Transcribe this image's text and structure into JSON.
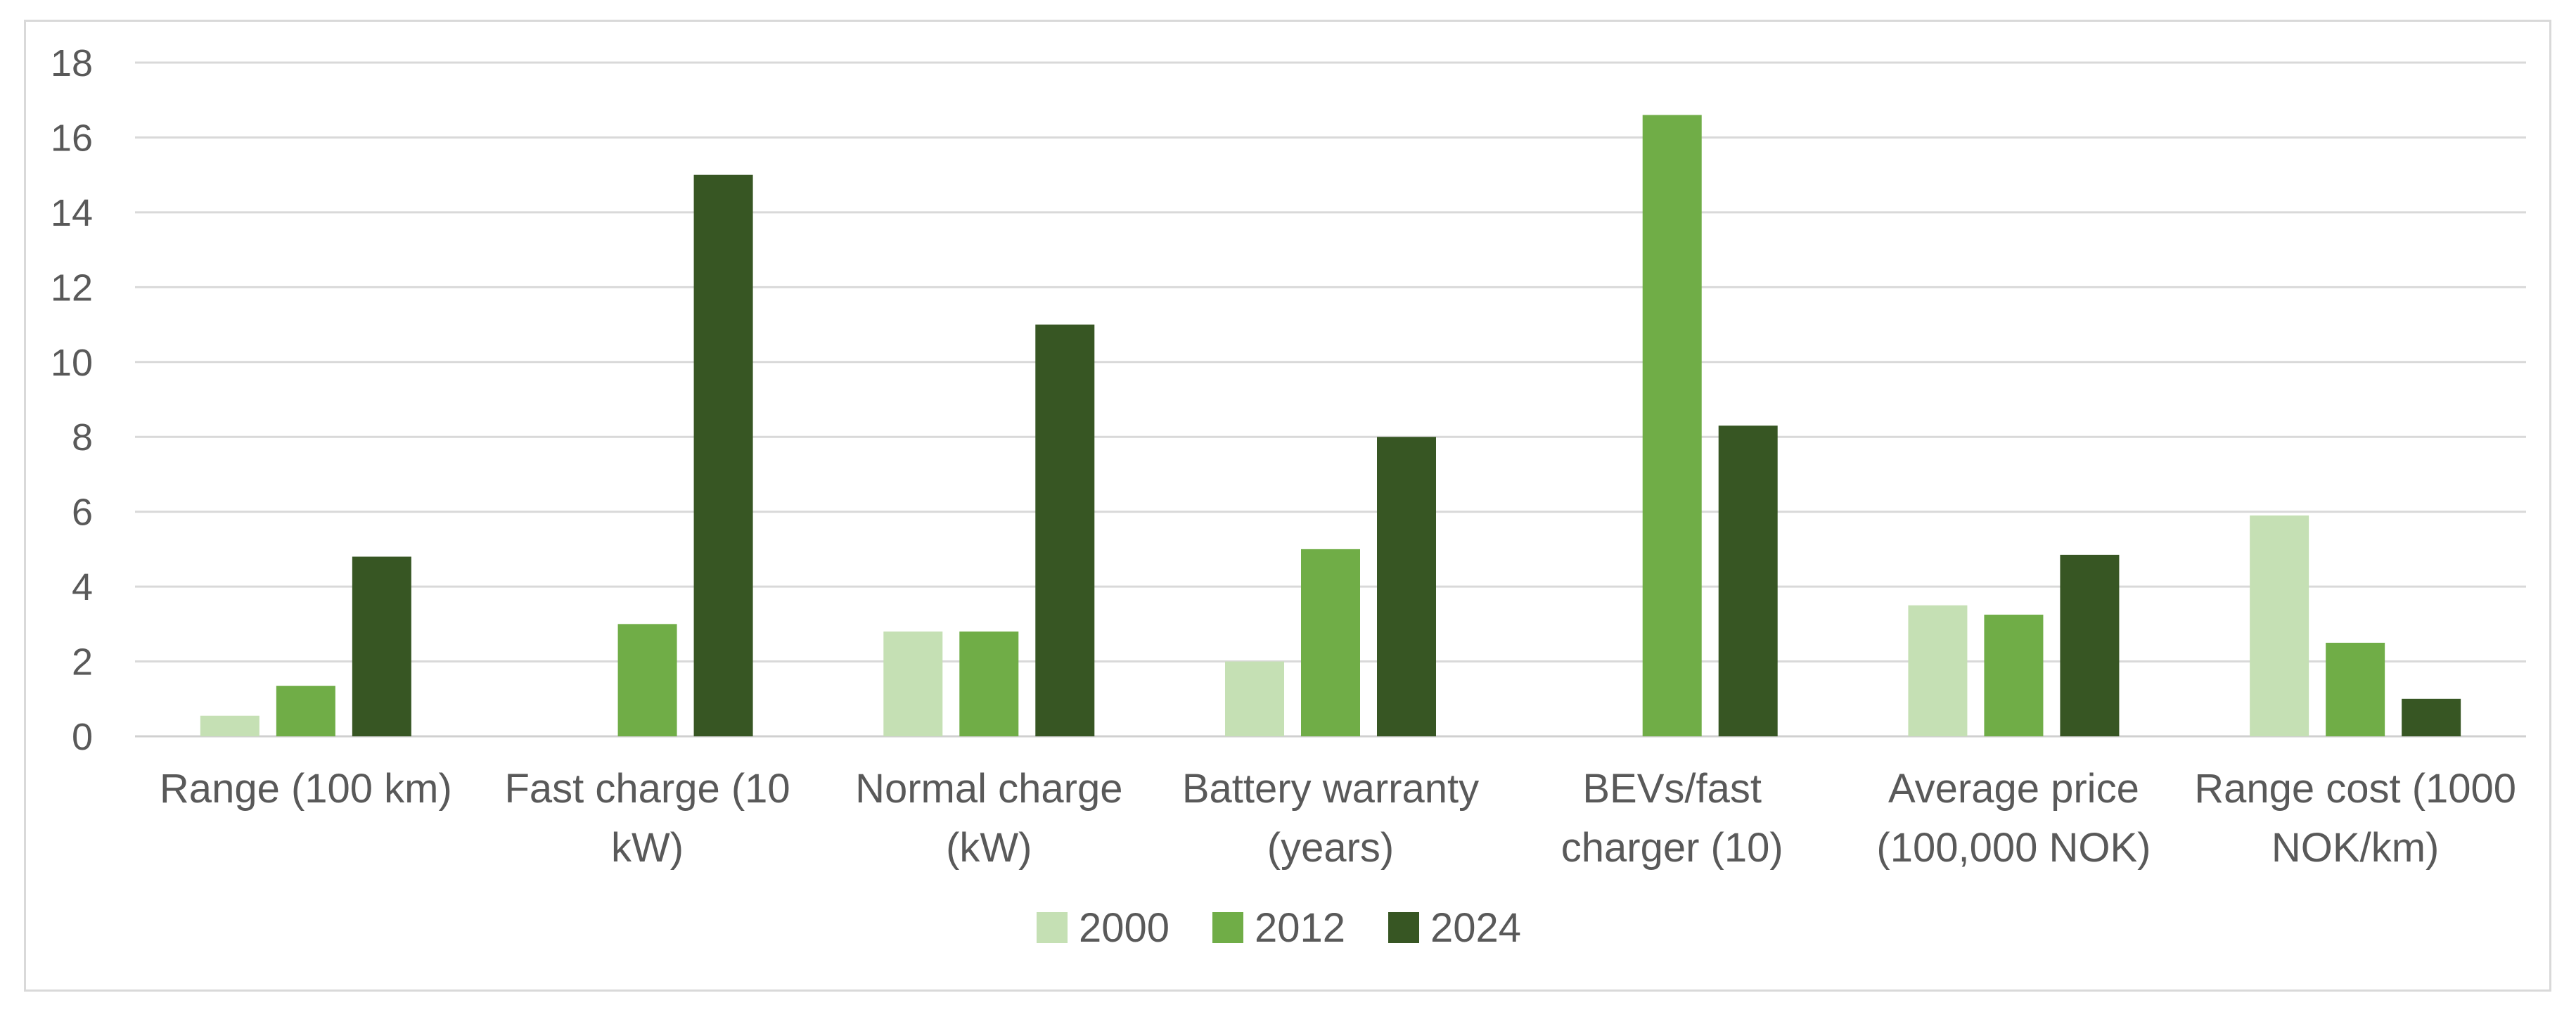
{
  "chart_data": {
    "type": "bar",
    "title": "",
    "xlabel": "",
    "ylabel": "",
    "ylim": [
      0,
      18
    ],
    "yticks": [
      0,
      2,
      4,
      6,
      8,
      10,
      12,
      14,
      16,
      18
    ],
    "grid": true,
    "legend_position": "bottom",
    "categories": [
      [
        "Range (100 km)"
      ],
      [
        "Fast charge (10",
        "kW)"
      ],
      [
        "Normal charge",
        "(kW)"
      ],
      [
        "Battery warranty",
        "(years)"
      ],
      [
        "BEVs/fast",
        "charger (10)"
      ],
      [
        "Average price",
        "(100,000 NOK)"
      ],
      [
        "Range cost (1000",
        "NOK/km)"
      ]
    ],
    "series": [
      {
        "name": "2000",
        "color": "#c5e0b4",
        "values": [
          0.55,
          null,
          2.8,
          2.0,
          null,
          3.5,
          5.9
        ]
      },
      {
        "name": "2012",
        "color": "#70ad47",
        "values": [
          1.35,
          3.0,
          2.8,
          5.0,
          16.6,
          3.25,
          2.5
        ]
      },
      {
        "name": "2024",
        "color": "#375623",
        "values": [
          4.8,
          15.0,
          11.0,
          8.0,
          8.3,
          4.85,
          1.0
        ]
      }
    ]
  }
}
